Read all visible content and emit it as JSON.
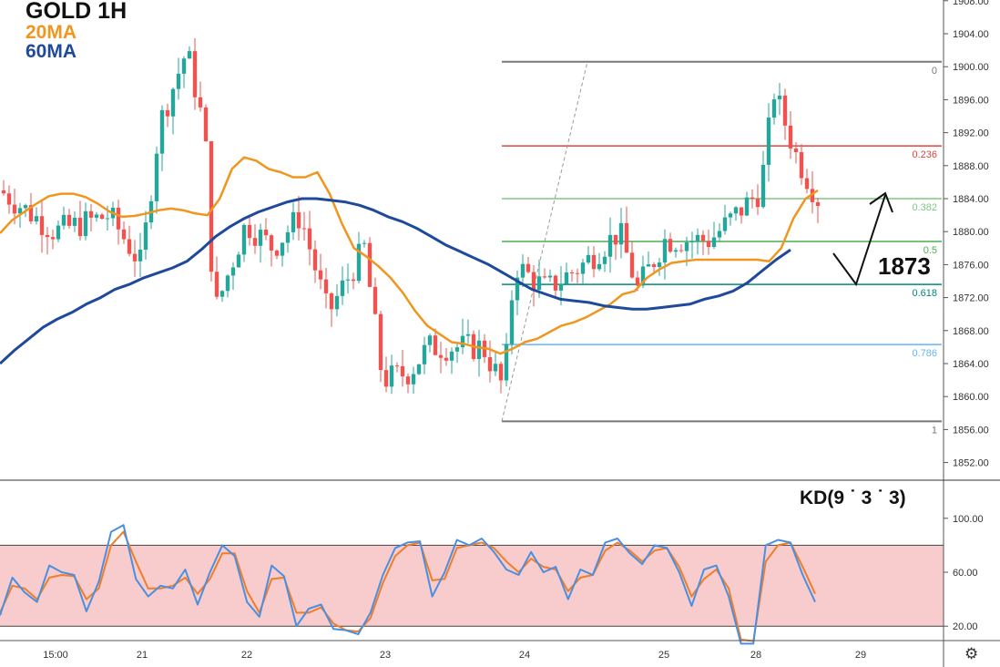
{
  "legend": {
    "title": "GOLD 1H",
    "ma20": "20MA",
    "ma60": "60MA"
  },
  "callout": "1873",
  "kd_label": "KD(9 ˙ 3 ˙ 3)",
  "colors": {
    "up": "#26a69a",
    "down": "#ef5350",
    "ma20": "#f0961e",
    "ma60": "#1f4a9b",
    "k_line": "#4a8fe0",
    "d_line": "#f07d2a",
    "kd_band": "#f8cccc"
  },
  "chart_data": [
    {
      "type": "candlestick",
      "title": "GOLD 1H",
      "ylim": [
        1850,
        1908
      ],
      "y_ticks": [
        1852,
        1856,
        1860,
        1864,
        1868,
        1872,
        1876,
        1880,
        1884,
        1888,
        1892,
        1896,
        1900,
        1904,
        1908
      ],
      "y_tick_labels": [
        "1852.00",
        "1856.00",
        "1860.00",
        "1864.00",
        "1868.00",
        "1872.00",
        "1876.00",
        "1880.00",
        "1884.00",
        "1888.00",
        "1892.00",
        "1896.00",
        "1900.00",
        "1904.00",
        "1908.00"
      ],
      "x_tick_labels": [
        "15:00",
        "21",
        "22",
        "23",
        "24",
        "25",
        "28",
        "29"
      ],
      "series": [
        {
          "name": "20MA",
          "values": [
            1879.8,
            1881.4,
            1882.4,
            1883.4,
            1884.3,
            1884.6,
            1884.6,
            1884.2,
            1883.4,
            1882.4,
            1881.8,
            1881.9,
            1882.2,
            1882.6,
            1882.8,
            1882.6,
            1882.2,
            1882.0,
            1884.0,
            1887.6,
            1889.0,
            1888.6,
            1887.6,
            1887.2,
            1886.6,
            1886.6,
            1887.2,
            1884.6,
            1881.0,
            1878.0,
            1877.0,
            1875.8,
            1874.4,
            1872.6,
            1870.4,
            1868.6,
            1867.6,
            1866.6,
            1866.4,
            1866.0,
            1865.8,
            1865.2,
            1865.8,
            1866.6,
            1867.0,
            1867.8,
            1868.6,
            1869.0,
            1869.6,
            1870.4,
            1871.2,
            1872.4,
            1872.8,
            1874.4,
            1875.4,
            1876.2,
            1876.4,
            1876.6,
            1876.6,
            1876.6,
            1876.6,
            1876.6,
            1876.6,
            1876.4,
            1878.0,
            1881.6,
            1884.0,
            1885.0
          ]
        },
        {
          "name": "60MA",
          "values": [
            1864.0,
            1865.6,
            1867.0,
            1868.4,
            1869.4,
            1870.2,
            1871.2,
            1872.0,
            1873.0,
            1873.6,
            1874.4,
            1875.0,
            1875.6,
            1876.4,
            1877.8,
            1879.4,
            1880.6,
            1881.6,
            1882.4,
            1883.0,
            1883.6,
            1884.0,
            1884.0,
            1883.8,
            1883.6,
            1883.2,
            1882.6,
            1881.8,
            1881.2,
            1880.4,
            1879.4,
            1878.4,
            1877.6,
            1876.8,
            1876.0,
            1875.0,
            1874.0,
            1873.0,
            1872.4,
            1871.8,
            1871.6,
            1871.4,
            1871.0,
            1870.8,
            1870.6,
            1870.6,
            1870.8,
            1871.0,
            1871.2,
            1871.8,
            1872.2,
            1872.8,
            1873.8,
            1875.2,
            1876.6,
            1877.8
          ]
        }
      ],
      "fibonacci": {
        "high": 1900.6,
        "low": 1857.0,
        "levels": [
          {
            "ratio_label": "0",
            "value": 1900.6
          },
          {
            "ratio_label": "0.236",
            "value": 1890.4
          },
          {
            "ratio_label": "0.382",
            "value": 1884.0
          },
          {
            "ratio_label": "0.5",
            "value": 1878.8
          },
          {
            "ratio_label": "0.618",
            "value": 1873.6
          },
          {
            "ratio_label": "0.786",
            "value": 1866.3
          },
          {
            "ratio_label": "1",
            "value": 1857.0
          }
        ]
      }
    },
    {
      "type": "line",
      "title": "KD(9 ˙ 3 ˙ 3)",
      "ylim": [
        0,
        100
      ],
      "y_ticks": [
        20,
        60,
        100
      ],
      "y_tick_labels": [
        "20.00",
        "60.00",
        "100.00"
      ],
      "bands": [
        20,
        80
      ],
      "series": [
        {
          "name": "K",
          "values": [
            28,
            56,
            45,
            38,
            65,
            60,
            58,
            31,
            53,
            90,
            95,
            55,
            42,
            50,
            48,
            62,
            36,
            60,
            80,
            72,
            38,
            27,
            65,
            57,
            20,
            33,
            36,
            18,
            17,
            14,
            30,
            58,
            78,
            82,
            83,
            42,
            60,
            84,
            80,
            85,
            75,
            62,
            58,
            75,
            60,
            64,
            40,
            62,
            58,
            82,
            85,
            74,
            66,
            80,
            78,
            60,
            35,
            62,
            65,
            42,
            7,
            7,
            80,
            84,
            82,
            58,
            38
          ]
        },
        {
          "name": "D",
          "values": [
            30,
            50,
            48,
            40,
            56,
            58,
            57,
            40,
            48,
            80,
            90,
            68,
            48,
            48,
            50,
            56,
            44,
            55,
            74,
            74,
            46,
            30,
            55,
            56,
            30,
            30,
            34,
            22,
            17,
            16,
            26,
            52,
            72,
            80,
            82,
            54,
            55,
            78,
            80,
            82,
            78,
            68,
            60,
            70,
            64,
            62,
            46,
            56,
            58,
            76,
            82,
            76,
            68,
            76,
            78,
            64,
            42,
            55,
            62,
            48,
            10,
            9,
            68,
            80,
            82,
            64,
            44
          ]
        }
      ]
    }
  ]
}
